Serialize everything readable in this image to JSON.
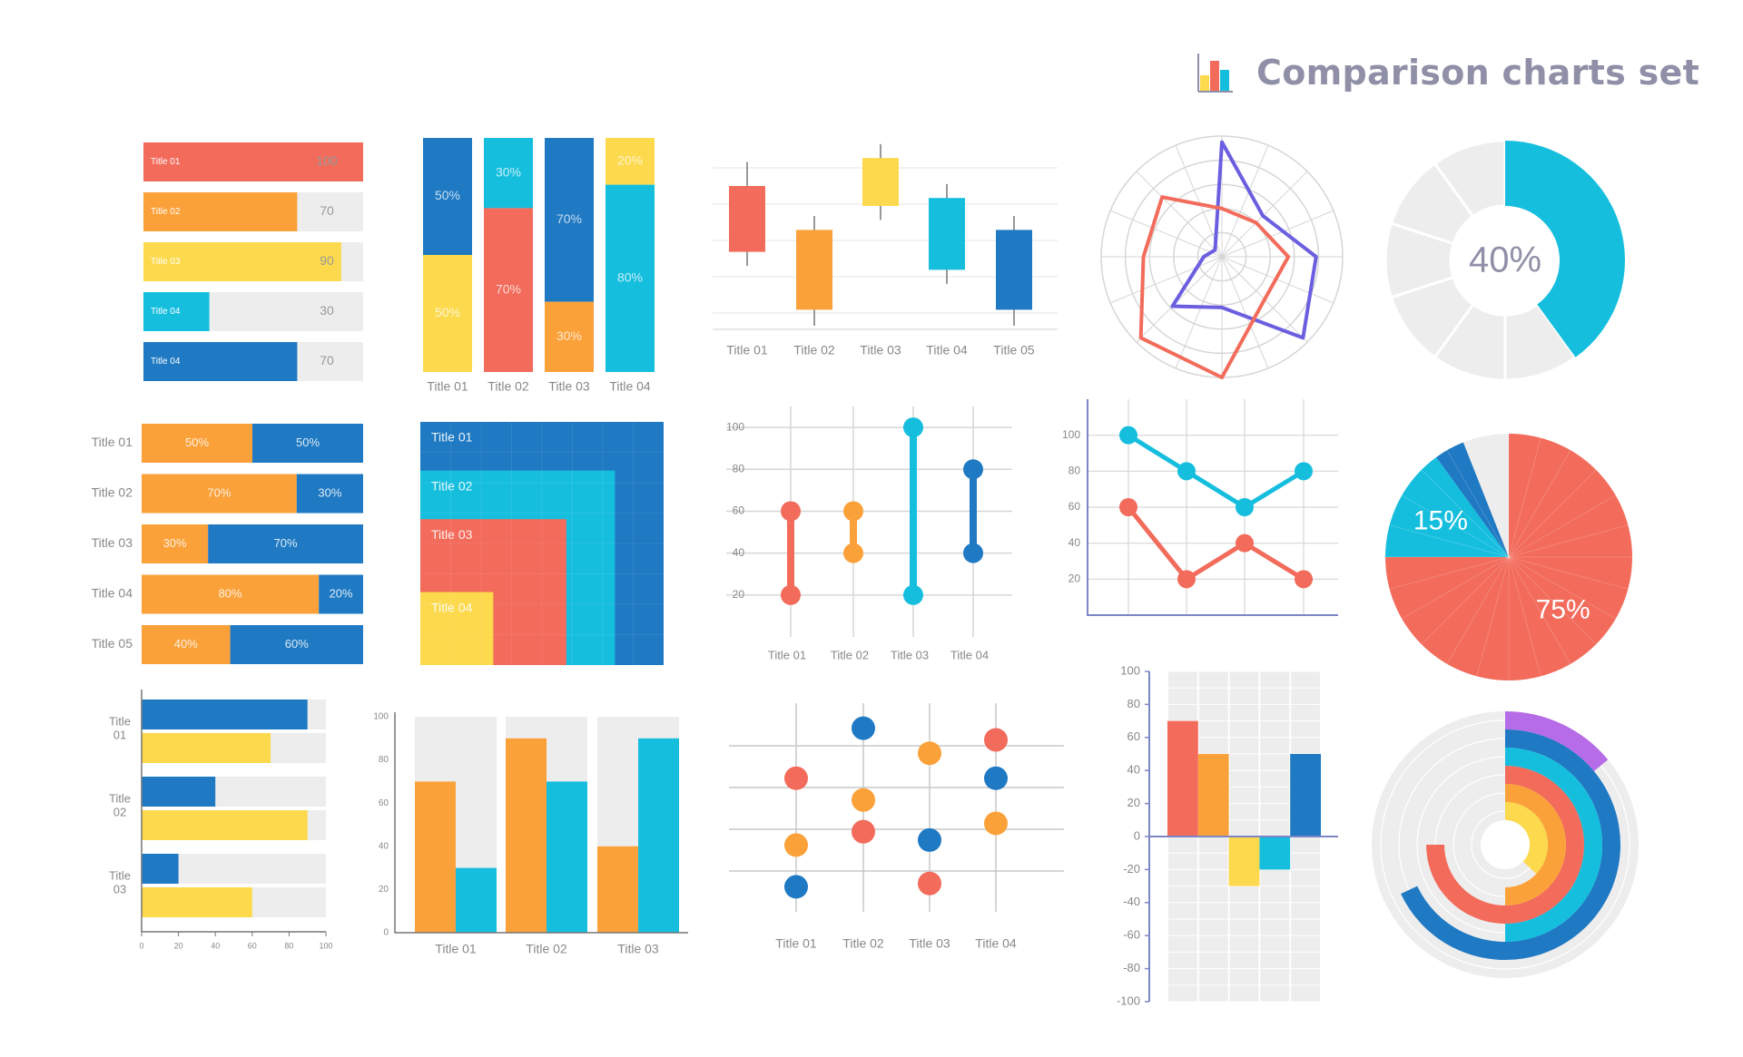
{
  "header": {
    "title": "Comparison charts set",
    "icon": "bar-chart-icon"
  },
  "colors": {
    "red": "#f26b5b",
    "orange": "#fba13a",
    "yellow": "#fcd94d",
    "cyan": "#16bede",
    "blue": "#1f79c3",
    "purple": "#6b5fe0",
    "violet": "#b66ce7",
    "grey": "#ededed",
    "grid": "#d8d8d8",
    "axis": "#7c86c6",
    "text": "#888888"
  },
  "chart_data": [
    {
      "id": "c1",
      "type": "bar",
      "orientation": "horizontal",
      "categories": [
        "Title 01",
        "Title 02",
        "Title 03",
        "Title 04",
        "Title 04"
      ],
      "values": [
        100,
        70,
        90,
        30,
        70
      ],
      "max": 100,
      "bar_colors": [
        "red",
        "orange",
        "yellow",
        "cyan",
        "blue"
      ]
    },
    {
      "id": "c2",
      "type": "bar",
      "stacked": true,
      "percent": true,
      "categories": [
        "Title 01",
        "Title 02",
        "Title 03",
        "Title 04"
      ],
      "series": [
        {
          "values": [
            50,
            70,
            30,
            80
          ],
          "colors": [
            "yellow",
            "red",
            "orange",
            "cyan"
          ]
        },
        {
          "values": [
            50,
            30,
            70,
            20
          ],
          "colors": [
            "blue",
            "cyan",
            "blue",
            "yellow"
          ]
        }
      ]
    },
    {
      "id": "c3",
      "type": "candlestick",
      "categories": [
        "Title 01",
        "Title 02",
        "Title 03",
        "Title 04",
        "Title 05"
      ],
      "candles": [
        {
          "hi": 87,
          "open": 75,
          "close": 42,
          "lo": 35,
          "color": "red"
        },
        {
          "hi": 60,
          "open": 53,
          "close": 13,
          "lo": 5,
          "color": "orange"
        },
        {
          "hi": 96,
          "open": 89,
          "close": 65,
          "lo": 58,
          "color": "yellow"
        },
        {
          "hi": 76,
          "open": 69,
          "close": 33,
          "lo": 26,
          "color": "cyan"
        },
        {
          "hi": 60,
          "open": 53,
          "close": 13,
          "lo": 5,
          "color": "blue"
        }
      ],
      "ylim": [
        0,
        100
      ]
    },
    {
      "id": "c4",
      "type": "radar",
      "axes": 8,
      "rings": 5,
      "max": 100,
      "series": [
        {
          "color": "purple",
          "values": [
            95,
            48,
            78,
            95,
            42,
            58,
            15,
            8
          ]
        },
        {
          "color": "red",
          "values": [
            40,
            40,
            55,
            50,
            100,
            95,
            65,
            70
          ]
        }
      ]
    },
    {
      "id": "c5",
      "type": "donut",
      "value": 40,
      "label": "40%",
      "segments": 10,
      "color": "cyan"
    },
    {
      "id": "c6",
      "type": "bar",
      "orientation": "horizontal",
      "stacked": true,
      "percent": true,
      "categories": [
        "Title 01",
        "Title 02",
        "Title 03",
        "Title 04",
        "Title 05"
      ],
      "series": [
        {
          "name": "orange",
          "values": [
            50,
            70,
            30,
            80,
            40
          ],
          "labels": [
            "50%",
            "70%",
            "30%",
            "80%",
            "40%"
          ]
        },
        {
          "name": "blue",
          "values": [
            50,
            30,
            70,
            20,
            60
          ],
          "labels": [
            "50%",
            "30%",
            "70%",
            "20%",
            "60%"
          ]
        }
      ]
    },
    {
      "id": "c7",
      "type": "nested-area",
      "categories": [
        "Title 01",
        "Title 02",
        "Title 03",
        "Title 04"
      ],
      "values": [
        100,
        80,
        60,
        30
      ],
      "colors": [
        "blue",
        "cyan",
        "red",
        "yellow"
      ]
    },
    {
      "id": "c8",
      "type": "dumbbell",
      "categories": [
        "Title 01",
        "Title 02",
        "Title 03",
        "Title 04"
      ],
      "low": [
        20,
        40,
        20,
        40
      ],
      "high": [
        60,
        60,
        100,
        80
      ],
      "colors": [
        "red",
        "orange",
        "cyan",
        "blue"
      ],
      "yticks": [
        "100",
        "80",
        "60",
        "40",
        "20"
      ],
      "ylim": [
        0,
        110
      ]
    },
    {
      "id": "c9",
      "type": "line",
      "x": [
        1,
        2,
        3,
        4
      ],
      "series": [
        {
          "color": "cyan",
          "values": [
            100,
            80,
            60,
            80
          ]
        },
        {
          "color": "red",
          "values": [
            60,
            20,
            40,
            20
          ]
        }
      ],
      "yticks": [
        "100",
        "80",
        "60",
        "40",
        "20"
      ],
      "ylim": [
        0,
        120
      ]
    },
    {
      "id": "c10",
      "type": "pie",
      "slices": [
        {
          "value": 75,
          "label": "75%",
          "color": "red"
        },
        {
          "value": 15,
          "label": "15%",
          "color": "cyan"
        },
        {
          "value": 4,
          "label": "",
          "color": "blue"
        },
        {
          "value": 6,
          "label": "",
          "color": "grey"
        }
      ]
    },
    {
      "id": "c11",
      "type": "bar",
      "orientation": "horizontal",
      "grouped": true,
      "categories": [
        "Title 01",
        "Title 02",
        "Title 03"
      ],
      "series": [
        {
          "color": "blue",
          "values": [
            90,
            40,
            20
          ]
        },
        {
          "color": "yellow",
          "values": [
            70,
            90,
            60
          ]
        }
      ],
      "xticks": [
        "0",
        "20",
        "40",
        "60",
        "80",
        "100"
      ],
      "xlim": [
        0,
        100
      ]
    },
    {
      "id": "c12",
      "type": "bar",
      "grouped": true,
      "categories": [
        "Title 01",
        "Title 02",
        "Title 03"
      ],
      "series": [
        {
          "color": "orange",
          "values": [
            70,
            90,
            40
          ]
        },
        {
          "color": "cyan",
          "values": [
            30,
            70,
            90
          ]
        }
      ],
      "yticks": [
        "100",
        "80",
        "60",
        "40",
        "20",
        "0"
      ],
      "ylim": [
        0,
        100
      ]
    },
    {
      "id": "c13",
      "type": "dot-plot",
      "categories": [
        "Title 01",
        "Title 02",
        "Title 03",
        "Title 04"
      ],
      "points": [
        [
          {
            "v": 80,
            "color": "red"
          },
          {
            "v": 40,
            "color": "orange"
          },
          {
            "v": 15,
            "color": "blue"
          }
        ],
        [
          {
            "v": 110,
            "color": "blue"
          },
          {
            "v": 67,
            "color": "orange"
          },
          {
            "v": 48,
            "color": "red"
          }
        ],
        [
          {
            "v": 95,
            "color": "orange"
          },
          {
            "v": 43,
            "color": "blue"
          },
          {
            "v": 17,
            "color": "red"
          }
        ],
        [
          {
            "v": 103,
            "color": "red"
          },
          {
            "v": 80,
            "color": "blue"
          },
          {
            "v": 53,
            "color": "orange"
          }
        ]
      ],
      "ylim": [
        0,
        125
      ]
    },
    {
      "id": "c14",
      "type": "bar",
      "values": [
        70,
        50,
        -30,
        -20,
        50
      ],
      "colors": [
        "red",
        "orange",
        "yellow",
        "cyan",
        "blue"
      ],
      "yticks": [
        "100",
        "80",
        "60",
        "40",
        "20",
        "0",
        "-20",
        "-40",
        "-60",
        "-80",
        "-100"
      ],
      "ylim": [
        -100,
        100
      ]
    },
    {
      "id": "c15",
      "type": "radial-bar",
      "rings": [
        {
          "color": "violet",
          "value": 14
        },
        {
          "color": "blue",
          "value": 68
        },
        {
          "color": "cyan",
          "value": 50
        },
        {
          "color": "red",
          "value": 75
        },
        {
          "color": "orange",
          "value": 50
        },
        {
          "color": "yellow",
          "value": 37
        }
      ]
    }
  ]
}
